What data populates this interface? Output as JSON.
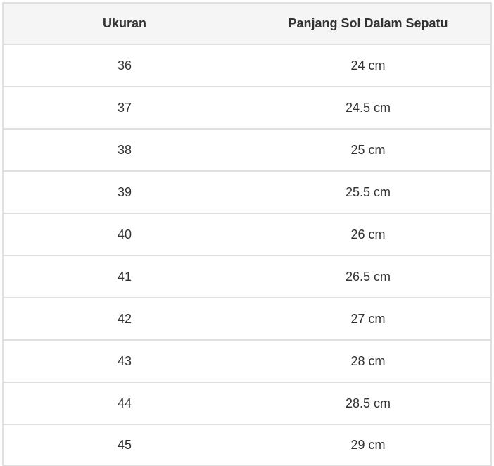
{
  "table": {
    "headers": [
      "Ukuran",
      "Panjang Sol Dalam Sepatu"
    ],
    "rows": [
      [
        "36",
        "24 cm"
      ],
      [
        "37",
        "24.5 cm"
      ],
      [
        "38",
        "25 cm"
      ],
      [
        "39",
        "25.5 cm"
      ],
      [
        "40",
        "26 cm"
      ],
      [
        "41",
        "26.5 cm"
      ],
      [
        "42",
        "27 cm"
      ],
      [
        "43",
        "28 cm"
      ],
      [
        "44",
        "28.5 cm"
      ],
      [
        "45",
        "29 cm"
      ]
    ]
  }
}
